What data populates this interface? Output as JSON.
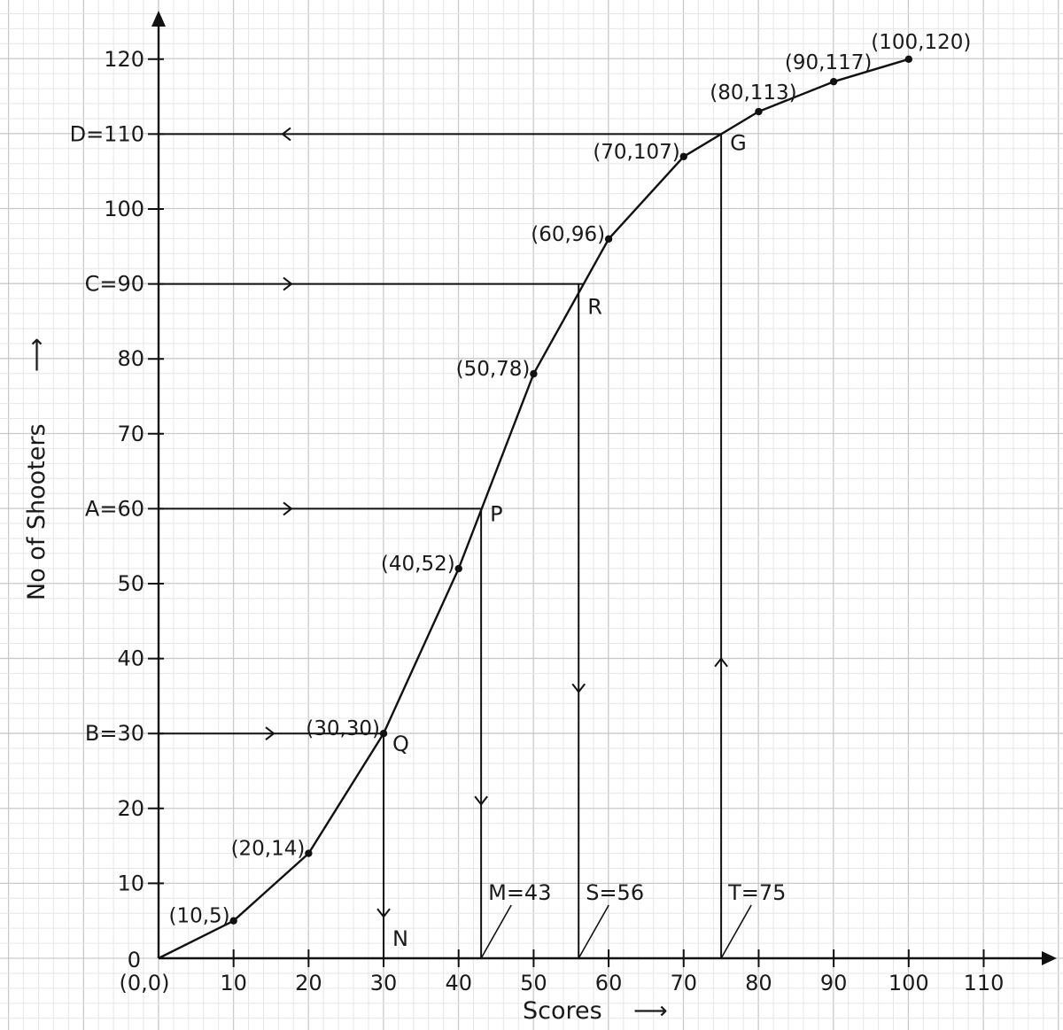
{
  "chart_data": {
    "type": "line",
    "title": "",
    "xlabel": "Scores",
    "ylabel": "No of Shooters",
    "x_arrow": "⟶",
    "y_arrow": "⟶",
    "xlim": [
      0,
      110
    ],
    "ylim": [
      0,
      120
    ],
    "x_ticks": [
      10,
      20,
      30,
      40,
      50,
      60,
      70,
      80,
      90,
      100,
      110
    ],
    "y_ticks": [
      10,
      20,
      40,
      50,
      70,
      80,
      100,
      120
    ],
    "origin_y_label": "0",
    "origin_label": "(0,0)",
    "grid": true,
    "series": [
      {
        "x": [
          0,
          10,
          20,
          30,
          40,
          50,
          60,
          70,
          80,
          90,
          100
        ],
        "y": [
          0,
          5,
          14,
          30,
          52,
          78,
          96,
          107,
          113,
          117,
          120
        ],
        "labels": [
          "",
          "(10,5)",
          "(20,14)",
          "(30,30)",
          "(40,52)",
          "(50,78)",
          "(60,96)",
          "(70,107)",
          "(80,113)",
          "(90,117)",
          "(100,120)"
        ]
      }
    ],
    "readings": [
      {
        "y_label": "B=30",
        "y": 30,
        "x": 30,
        "point": "Q",
        "foot": "N",
        "foot_label": "",
        "y_arrow_dir": "right"
      },
      {
        "y_label": "A=60",
        "y": 60,
        "x": 43,
        "point": "P",
        "foot": "",
        "foot_label": "M=43",
        "y_arrow_dir": "right"
      },
      {
        "y_label": "C=90",
        "y": 90,
        "x": 56,
        "point": "R",
        "foot": "",
        "foot_label": "S=56",
        "y_arrow_dir": "right"
      },
      {
        "y_label": "D=110",
        "y": 110,
        "x": 75,
        "point": "G",
        "foot": "",
        "foot_label": "T=75",
        "y_arrow_dir": "left"
      }
    ]
  }
}
